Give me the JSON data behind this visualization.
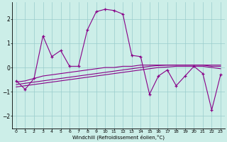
{
  "xlabel": "Windchill (Refroidissement éolien,°C)",
  "background_color": "#cceee8",
  "line_color": "#880088",
  "grid_color": "#99cccc",
  "x_values": [
    0,
    1,
    2,
    3,
    4,
    5,
    6,
    7,
    8,
    9,
    10,
    11,
    12,
    13,
    14,
    15,
    16,
    17,
    18,
    19,
    20,
    21,
    22,
    23
  ],
  "line1": [
    -0.55,
    -0.9,
    -0.45,
    1.3,
    0.45,
    0.7,
    0.05,
    0.05,
    1.55,
    2.3,
    2.4,
    2.35,
    2.2,
    0.5,
    0.45,
    -1.1,
    -0.35,
    -0.1,
    -0.75,
    -0.35,
    0.05,
    -0.25,
    -1.75,
    -0.3
  ],
  "line2": [
    -0.6,
    -0.55,
    -0.45,
    -0.35,
    -0.3,
    -0.25,
    -0.2,
    -0.15,
    -0.1,
    -0.05,
    0.0,
    0.0,
    0.05,
    0.05,
    0.1,
    0.1,
    0.1,
    0.1,
    0.1,
    0.1,
    0.1,
    0.1,
    0.05,
    0.05
  ],
  "line3": [
    -0.7,
    -0.65,
    -0.6,
    -0.55,
    -0.5,
    -0.45,
    -0.4,
    -0.35,
    -0.3,
    -0.25,
    -0.2,
    -0.15,
    -0.1,
    -0.05,
    0.0,
    0.05,
    0.08,
    0.1,
    0.1,
    0.1,
    0.1,
    0.1,
    0.1,
    0.1
  ],
  "line4": [
    -0.8,
    -0.75,
    -0.7,
    -0.65,
    -0.6,
    -0.55,
    -0.5,
    -0.45,
    -0.4,
    -0.35,
    -0.3,
    -0.25,
    -0.2,
    -0.15,
    -0.1,
    -0.05,
    0.0,
    0.02,
    0.05,
    0.05,
    0.05,
    0.05,
    0.0,
    -0.05
  ],
  "ylim": [
    -2.5,
    2.7
  ],
  "yticks": [
    -2,
    -1,
    0,
    1,
    2
  ],
  "xtick_labels": [
    "0",
    "1",
    "2",
    "3",
    "4",
    "5",
    "6",
    "7",
    "8",
    "9",
    "10",
    "11",
    "12",
    "13",
    "14",
    "15",
    "16",
    "17",
    "18",
    "19",
    "20",
    "21",
    "22",
    "23"
  ]
}
